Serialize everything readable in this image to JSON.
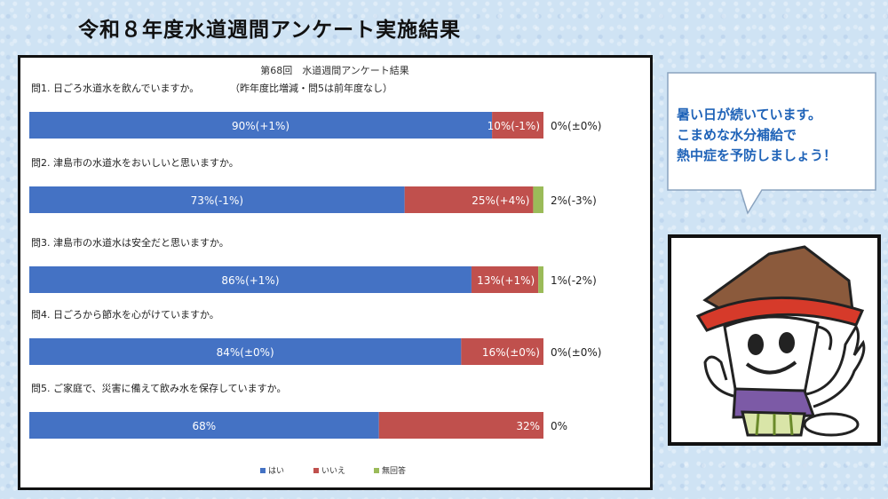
{
  "page": {
    "title": "令和８年度水道週間アンケート実施結果"
  },
  "callout": {
    "lines": [
      "暑い日が続いています。",
      "こまめな水分補給で",
      "熱中症を予防しましょう！"
    ]
  },
  "mascot": {
    "icon": "mascot-character-icon"
  },
  "colors": {
    "yes": "#4472c4",
    "no": "#c0504d",
    "no_answer": "#9bbb59",
    "callout_text": "#1f63b8"
  },
  "chart_data": {
    "type": "bar",
    "orientation": "horizontal",
    "stacked": true,
    "title": "第68回　水道週間アンケート結果",
    "subtitle": "（昨年度比増減・問5は前年度なし）",
    "categories": [
      "問1. 日ごろ水道水を飲んでいますか。",
      "問2. 津島市の水道水をおいしいと思いますか。",
      "問3. 津島市の水道水は安全だと思いますか。",
      "問4. 日ごろから節水を心がけていますか。",
      "問5. ご家庭で、災害に備えて飲み水を保存していますか。"
    ],
    "series": [
      {
        "name": "はい",
        "values": [
          90,
          73,
          86,
          84,
          68
        ],
        "labels": [
          "90%(+1%)",
          "73%(-1%)",
          "86%(+1%)",
          "84%(±0%)",
          "68%"
        ]
      },
      {
        "name": "いいえ",
        "values": [
          10,
          25,
          13,
          16,
          32
        ],
        "labels": [
          "10%(-1%)",
          "25%(+4%)",
          "13%(+1%)",
          "16%(±0%)",
          "32%"
        ]
      },
      {
        "name": "無回答",
        "values": [
          0,
          2,
          1,
          0,
          0
        ],
        "labels": [
          "0%(±0%)",
          "2%(-3%)",
          "1%(-2%)",
          "0%(±0%)",
          "0%"
        ]
      }
    ],
    "xlim": [
      0,
      100
    ],
    "legend_position": "bottom",
    "grid": false
  }
}
